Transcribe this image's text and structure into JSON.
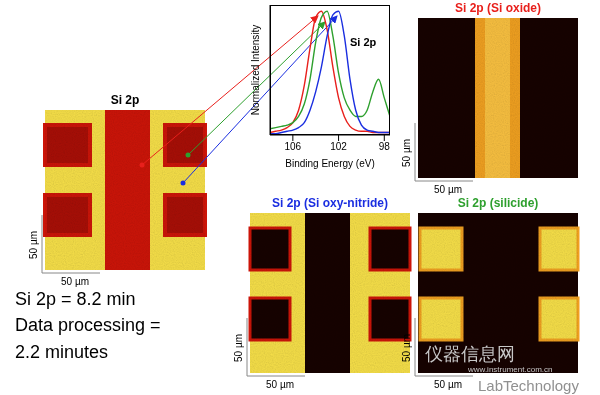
{
  "chart_data": {
    "type": "line",
    "title": "Si 2p",
    "x_label": "Binding Energy (eV)",
    "y_label": "Normalized Intensity",
    "x": [
      108,
      107.5,
      107,
      106.5,
      106,
      105.5,
      105,
      104.5,
      104,
      103.5,
      103,
      102.5,
      102,
      101.5,
      101,
      100.5,
      100,
      99.5,
      99,
      98.5,
      98,
      97.5
    ],
    "series": [
      {
        "color": "#e8201c",
        "values": [
          0.02,
          0.03,
          0.04,
          0.06,
          0.1,
          0.2,
          0.4,
          0.7,
          0.95,
          1.0,
          0.85,
          0.55,
          0.3,
          0.15,
          0.07,
          0.04,
          0.03,
          0.03,
          0.02,
          0.02,
          0.02,
          0.02
        ]
      },
      {
        "color": "#2ea02e",
        "values": [
          0.05,
          0.06,
          0.07,
          0.08,
          0.1,
          0.15,
          0.25,
          0.45,
          0.75,
          0.95,
          1.0,
          0.8,
          0.5,
          0.3,
          0.2,
          0.15,
          0.15,
          0.2,
          0.35,
          0.45,
          0.3,
          0.15
        ]
      },
      {
        "color": "#1a2ee0",
        "values": [
          0.01,
          0.01,
          0.02,
          0.03,
          0.04,
          0.06,
          0.1,
          0.2,
          0.35,
          0.55,
          0.8,
          0.97,
          1.0,
          0.8,
          0.45,
          0.2,
          0.08,
          0.04,
          0.03,
          0.02,
          0.02,
          0.02
        ]
      }
    ],
    "xlim": [
      108,
      97.5
    ],
    "xticks": [
      106,
      102,
      98
    ],
    "ylim": [
      0,
      1.05
    ],
    "yticks": [],
    "tick_labels": "x",
    "grid": false
  },
  "maps": [
    {
      "title": "Si 2p",
      "color": "#000000",
      "scale_x_label": "50 µm",
      "scale_y_label": "50 µm"
    },
    {
      "title": "Si 2p (Si oxide)",
      "color": "#e8201c",
      "scale_x_label": "50 µm",
      "scale_y_label": "50 µm"
    },
    {
      "title": "Si 2p (Si oxy-nitride)",
      "color": "#1a2ee0",
      "scale_x_label": "50 µm",
      "scale_y_label": "50 µm"
    },
    {
      "title": "Si 2p (silicide)",
      "color": "#2ea02e",
      "scale_x_label": "50 µm",
      "scale_y_label": "50 µm"
    }
  ],
  "notes": [
    "Si 2p = 8.2 min",
    "Data processing =",
    "2.2 minutes"
  ],
  "watermark": {
    "name": "仪器信息网",
    "url": "www.instrument.com.cn",
    "brand": "LabTechnology"
  }
}
